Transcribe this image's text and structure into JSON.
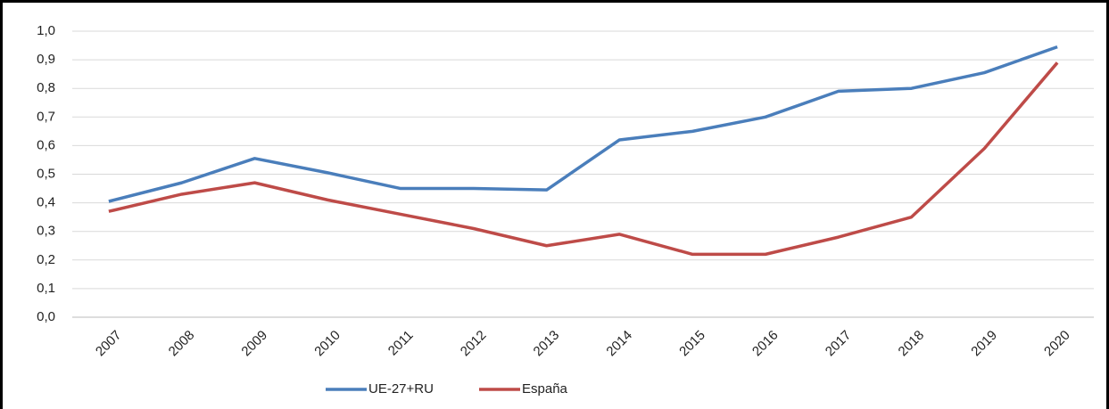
{
  "chart_data": {
    "type": "line",
    "categories": [
      "2007",
      "2008",
      "2009",
      "2010",
      "2011",
      "2012",
      "2013",
      "2014",
      "2015",
      "2016",
      "2017",
      "2018",
      "2019",
      "2020"
    ],
    "series": [
      {
        "name": "UE-27+RU",
        "color": "#4a7ebb",
        "values": [
          0.405,
          0.47,
          0.555,
          0.505,
          0.45,
          0.45,
          0.445,
          0.62,
          0.65,
          0.7,
          0.79,
          0.8,
          0.855,
          0.945
        ]
      },
      {
        "name": "España",
        "color": "#be4b48",
        "values": [
          0.37,
          0.43,
          0.47,
          0.41,
          0.36,
          0.31,
          0.25,
          0.29,
          0.22,
          0.22,
          0.28,
          0.35,
          0.59,
          0.89
        ]
      }
    ],
    "ylim": [
      0,
      1
    ],
    "yticks": [
      {
        "value": 0,
        "label": "0,0"
      },
      {
        "value": 0.1,
        "label": "0,1"
      },
      {
        "value": 0.2,
        "label": "0,2"
      },
      {
        "value": 0.3,
        "label": "0,3"
      },
      {
        "value": 0.4,
        "label": "0,4"
      },
      {
        "value": 0.5,
        "label": "0,5"
      },
      {
        "value": 0.6,
        "label": "0,6"
      },
      {
        "value": 0.7,
        "label": "0,7"
      },
      {
        "value": 0.8,
        "label": "0,8"
      },
      {
        "value": 0.9,
        "label": "0,9"
      },
      {
        "value": 1,
        "label": "1,0"
      }
    ],
    "grid": true,
    "legend": "bottom"
  }
}
